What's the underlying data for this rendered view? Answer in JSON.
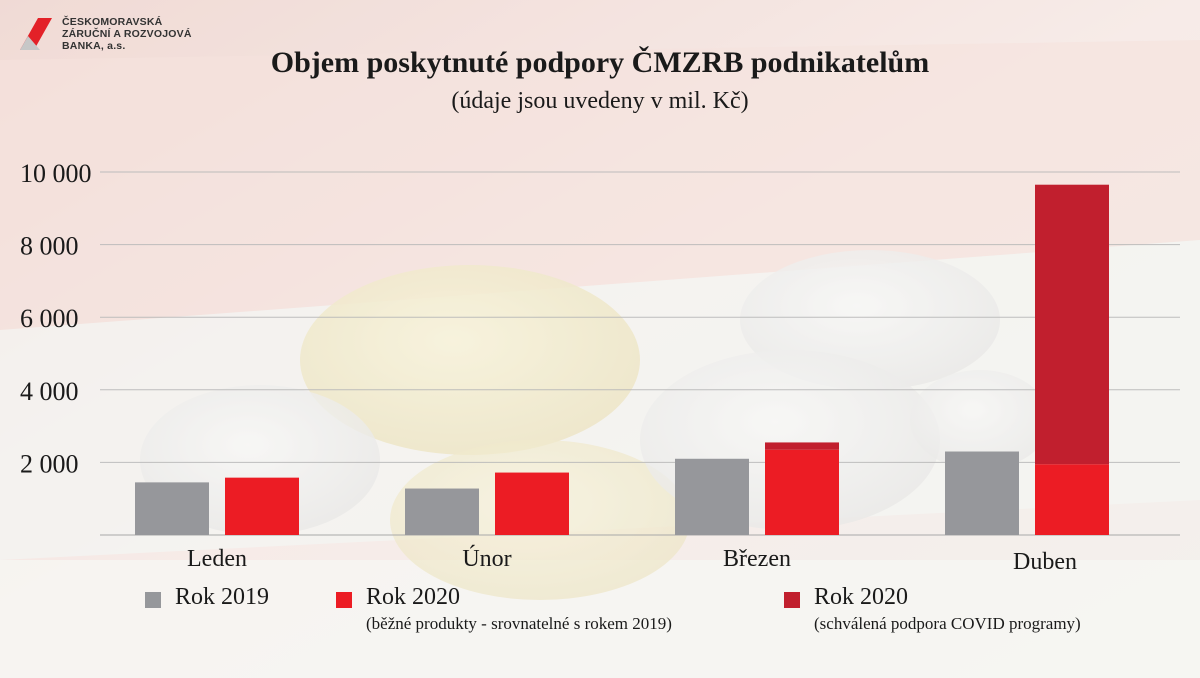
{
  "header": {
    "logo_lines": [
      "ČESKOMORAVSKÁ",
      "ZÁRUČNÍ A ROZVOJOVÁ",
      "BANKA, a.s."
    ],
    "title": "Objem poskytnuté podpory ČMZRB podnikatelům",
    "subtitle": "(údaje jsou uvedeny v mil. Kč)"
  },
  "colors": {
    "rok2019": "#96979b",
    "rok2020": "#ec1c24",
    "covid": "#c11f2e"
  },
  "chart_data": {
    "type": "bar",
    "categories": [
      "Leden",
      "Únor",
      "Březen",
      "Duben"
    ],
    "series": [
      {
        "name": "Rok 2019",
        "values": [
          1450,
          1280,
          2100,
          2300
        ]
      },
      {
        "name": "Rok 2020",
        "values": [
          1580,
          1720,
          2350,
          1950
        ]
      },
      {
        "name": "Rok 2020",
        "values": [
          0,
          0,
          200,
          7700
        ]
      }
    ],
    "stacked_series": [
      1,
      2
    ],
    "yticks": [
      "10 000",
      "8 000",
      "6 000",
      "4 000",
      "2 000"
    ],
    "ytick_values": [
      10000,
      8000,
      6000,
      4000,
      2000
    ],
    "ylim": [
      0,
      10000
    ],
    "grid": true,
    "legend_position": "bottom"
  },
  "legend": [
    {
      "label": "Rok 2019",
      "sub": ""
    },
    {
      "label": "Rok 2020",
      "sub": "(běžné produkty - srovnatelné s rokem 2019)"
    },
    {
      "label": "Rok 2020",
      "sub": "(schválená podpora COVID programy)"
    }
  ]
}
